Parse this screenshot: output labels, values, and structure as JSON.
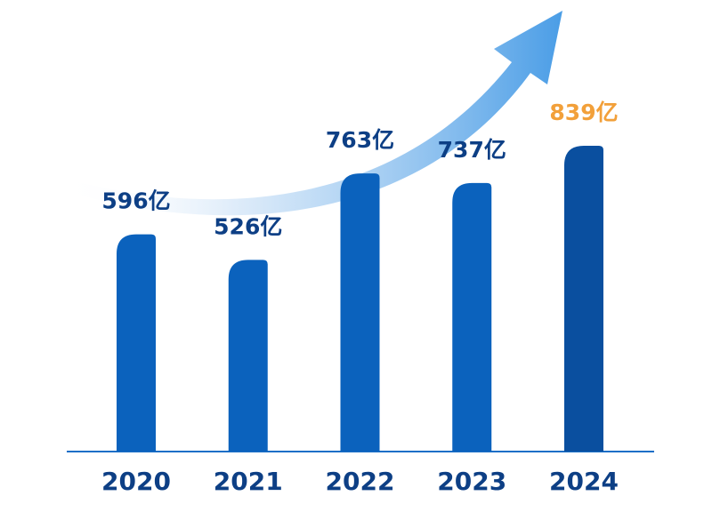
{
  "chart_data": {
    "type": "bar",
    "categories": [
      "2020",
      "2021",
      "2022",
      "2023",
      "2024"
    ],
    "values": [
      596,
      526,
      763,
      737,
      839
    ],
    "value_labels": [
      "596亿",
      "526亿",
      "763亿",
      "737亿",
      "839亿"
    ],
    "colors": [
      "#0b62bd",
      "#0b62bd",
      "#0b62bd",
      "#0b62bd",
      "#0a4f9f"
    ],
    "label_colors": [
      "#0d3f85",
      "#0d3f85",
      "#0d3f85",
      "#0d3f85",
      "#f2a03a"
    ]
  }
}
